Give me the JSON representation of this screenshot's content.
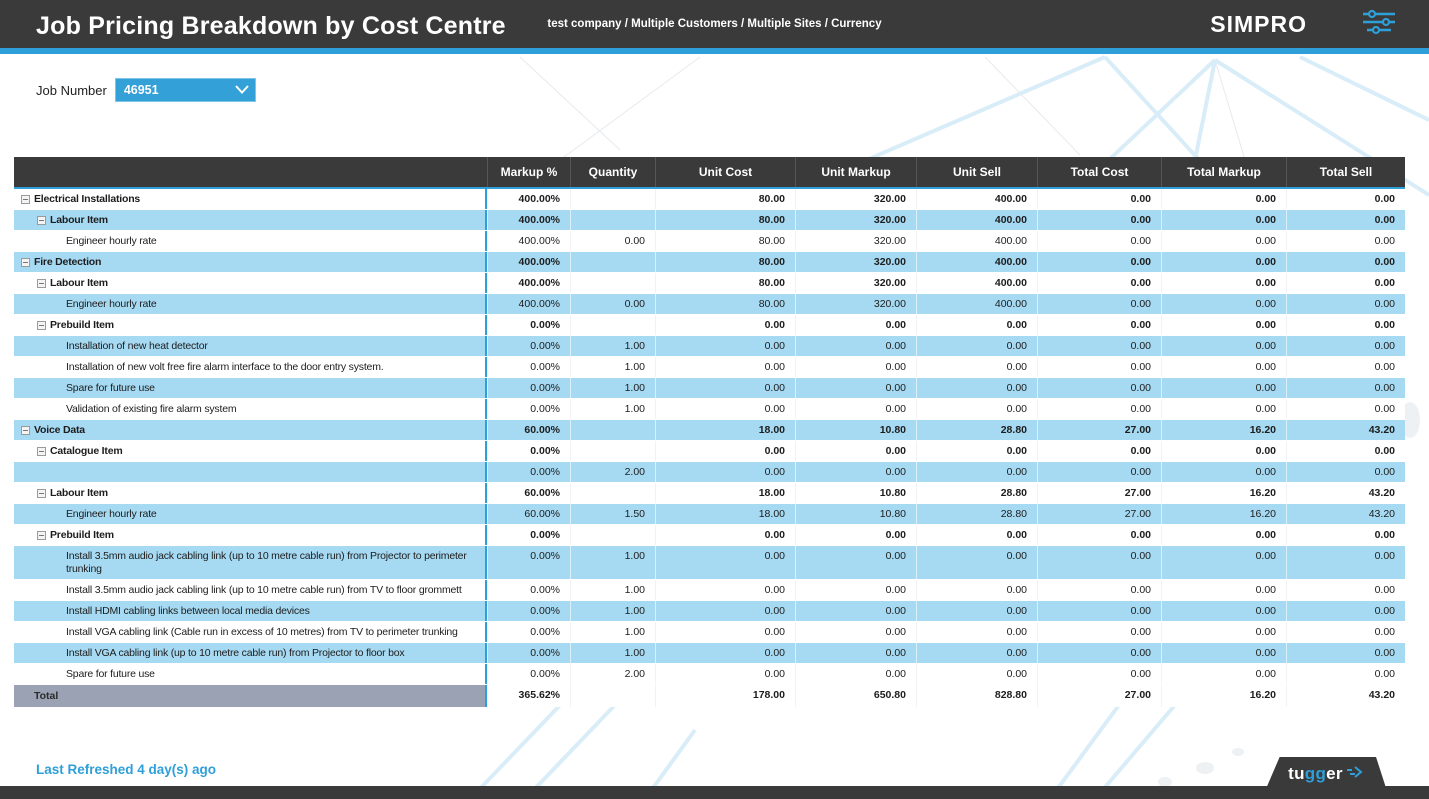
{
  "header": {
    "title": "Job Pricing Breakdown by Cost Centre",
    "breadcrumb": "test company / Multiple Customers / Multiple Sites / Currency",
    "logo_text": "SIMPRO",
    "filter_icon": "sliders-icon"
  },
  "filters": {
    "job_number_label": "Job Number",
    "job_number_value": "46951",
    "job_number_icon": "chevron-down-icon"
  },
  "table": {
    "columns": [
      "",
      "Markup %",
      "Quantity",
      "Unit Cost",
      "Unit Markup",
      "Unit Sell",
      "Total Cost",
      "Total Markup",
      "Total Sell"
    ],
    "rows": [
      {
        "label": "Electrical Installations",
        "level": 0,
        "collapse": true,
        "bold": true,
        "values": [
          "400.00%",
          "",
          "80.00",
          "320.00",
          "400.00",
          "0.00",
          "0.00",
          "0.00"
        ]
      },
      {
        "label": "Labour Item",
        "level": 1,
        "collapse": true,
        "bold": true,
        "values": [
          "400.00%",
          "",
          "80.00",
          "320.00",
          "400.00",
          "0.00",
          "0.00",
          "0.00"
        ]
      },
      {
        "label": "Engineer hourly rate",
        "level": 2,
        "collapse": false,
        "bold": false,
        "values": [
          "400.00%",
          "0.00",
          "80.00",
          "320.00",
          "400.00",
          "0.00",
          "0.00",
          "0.00"
        ]
      },
      {
        "label": "Fire Detection",
        "level": 0,
        "collapse": true,
        "bold": true,
        "values": [
          "400.00%",
          "",
          "80.00",
          "320.00",
          "400.00",
          "0.00",
          "0.00",
          "0.00"
        ]
      },
      {
        "label": "Labour Item",
        "level": 1,
        "collapse": true,
        "bold": true,
        "values": [
          "400.00%",
          "",
          "80.00",
          "320.00",
          "400.00",
          "0.00",
          "0.00",
          "0.00"
        ]
      },
      {
        "label": "Engineer hourly rate",
        "level": 2,
        "collapse": false,
        "bold": false,
        "values": [
          "400.00%",
          "0.00",
          "80.00",
          "320.00",
          "400.00",
          "0.00",
          "0.00",
          "0.00"
        ]
      },
      {
        "label": "Prebuild Item",
        "level": 1,
        "collapse": true,
        "bold": true,
        "values": [
          "0.00%",
          "",
          "0.00",
          "0.00",
          "0.00",
          "0.00",
          "0.00",
          "0.00"
        ]
      },
      {
        "label": "Installation of new heat detector",
        "level": 2,
        "collapse": false,
        "bold": false,
        "values": [
          "0.00%",
          "1.00",
          "0.00",
          "0.00",
          "0.00",
          "0.00",
          "0.00",
          "0.00"
        ]
      },
      {
        "label": "Installation of new volt free fire alarm interface to the door entry system.",
        "level": 2,
        "collapse": false,
        "bold": false,
        "values": [
          "0.00%",
          "1.00",
          "0.00",
          "0.00",
          "0.00",
          "0.00",
          "0.00",
          "0.00"
        ]
      },
      {
        "label": "Spare for future use",
        "level": 2,
        "collapse": false,
        "bold": false,
        "values": [
          "0.00%",
          "1.00",
          "0.00",
          "0.00",
          "0.00",
          "0.00",
          "0.00",
          "0.00"
        ]
      },
      {
        "label": "Validation of existing fire alarm system",
        "level": 2,
        "collapse": false,
        "bold": false,
        "values": [
          "0.00%",
          "1.00",
          "0.00",
          "0.00",
          "0.00",
          "0.00",
          "0.00",
          "0.00"
        ]
      },
      {
        "label": "Voice Data",
        "level": 0,
        "collapse": true,
        "bold": true,
        "values": [
          "60.00%",
          "",
          "18.00",
          "10.80",
          "28.80",
          "27.00",
          "16.20",
          "43.20"
        ]
      },
      {
        "label": "Catalogue Item",
        "level": 1,
        "collapse": true,
        "bold": true,
        "values": [
          "0.00%",
          "",
          "0.00",
          "0.00",
          "0.00",
          "0.00",
          "0.00",
          "0.00"
        ]
      },
      {
        "label": "",
        "level": 2,
        "collapse": false,
        "bold": false,
        "values": [
          "0.00%",
          "2.00",
          "0.00",
          "0.00",
          "0.00",
          "0.00",
          "0.00",
          "0.00"
        ]
      },
      {
        "label": "Labour Item",
        "level": 1,
        "collapse": true,
        "bold": true,
        "values": [
          "60.00%",
          "",
          "18.00",
          "10.80",
          "28.80",
          "27.00",
          "16.20",
          "43.20"
        ]
      },
      {
        "label": "Engineer hourly rate",
        "level": 2,
        "collapse": false,
        "bold": false,
        "values": [
          "60.00%",
          "1.50",
          "18.00",
          "10.80",
          "28.80",
          "27.00",
          "16.20",
          "43.20"
        ]
      },
      {
        "label": "Prebuild Item",
        "level": 1,
        "collapse": true,
        "bold": true,
        "values": [
          "0.00%",
          "",
          "0.00",
          "0.00",
          "0.00",
          "0.00",
          "0.00",
          "0.00"
        ]
      },
      {
        "label": "Install 3.5mm audio jack cabling link (up to 10 metre cable run) from Projector to perimeter trunking",
        "level": 2,
        "collapse": false,
        "bold": false,
        "values": [
          "0.00%",
          "1.00",
          "0.00",
          "0.00",
          "0.00",
          "0.00",
          "0.00",
          "0.00"
        ]
      },
      {
        "label": "Install 3.5mm audio jack cabling link (up to 10 metre cable run) from TV to floor grommett",
        "level": 2,
        "collapse": false,
        "bold": false,
        "values": [
          "0.00%",
          "1.00",
          "0.00",
          "0.00",
          "0.00",
          "0.00",
          "0.00",
          "0.00"
        ]
      },
      {
        "label": "Install HDMI cabling links between local media devices",
        "level": 2,
        "collapse": false,
        "bold": false,
        "values": [
          "0.00%",
          "1.00",
          "0.00",
          "0.00",
          "0.00",
          "0.00",
          "0.00",
          "0.00"
        ]
      },
      {
        "label": "Install VGA cabling link (Cable run in excess of 10 metres) from TV to perimeter trunking",
        "level": 2,
        "collapse": false,
        "bold": false,
        "values": [
          "0.00%",
          "1.00",
          "0.00",
          "0.00",
          "0.00",
          "0.00",
          "0.00",
          "0.00"
        ]
      },
      {
        "label": "Install VGA cabling link (up to 10 metre cable run) from Projector to floor box",
        "level": 2,
        "collapse": false,
        "bold": false,
        "values": [
          "0.00%",
          "1.00",
          "0.00",
          "0.00",
          "0.00",
          "0.00",
          "0.00",
          "0.00"
        ]
      },
      {
        "label": "Spare for future use",
        "level": 2,
        "collapse": false,
        "bold": false,
        "values": [
          "0.00%",
          "2.00",
          "0.00",
          "0.00",
          "0.00",
          "0.00",
          "0.00",
          "0.00"
        ]
      }
    ],
    "total": {
      "label": "Total",
      "values": [
        "365.62%",
        "",
        "178.00",
        "650.80",
        "828.80",
        "27.00",
        "16.20",
        "43.20"
      ]
    }
  },
  "footer": {
    "last_refreshed": "Last Refreshed 4 day(s) ago",
    "brand_prefix": "tu",
    "brand_mid": "gg",
    "brand_suffix": "er"
  },
  "colors": {
    "accent_blue": "#2e9fd8",
    "row_blue": "#a6d9f2",
    "header_dark": "#3a3a3a",
    "total_gray": "#9aa2b3"
  }
}
